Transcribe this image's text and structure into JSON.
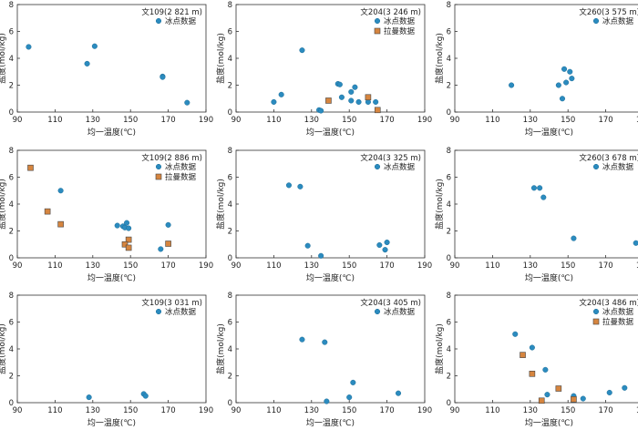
{
  "colors": {
    "ice": "#2b8bbf",
    "raman": "#d6853f",
    "marker_stroke": "#444444",
    "axis": "#333333"
  },
  "chart_data": [
    {
      "type": "scatter",
      "title": "文109(2 821 m)",
      "xlabel": "均一温度(℃)",
      "ylabel": "盐度(mol/kg)",
      "xlim": [
        90,
        190
      ],
      "ylim": [
        0,
        8
      ],
      "xticks": [
        90,
        110,
        130,
        150,
        170,
        190
      ],
      "yticks": [
        0,
        2,
        4,
        6,
        8
      ],
      "legend_position": "top-right",
      "series": [
        {
          "name": "冰点数据",
          "marker": "circle",
          "points": [
            [
              96,
              4.85
            ],
            [
              131,
              4.9
            ],
            [
              127,
              3.6
            ],
            [
              167,
              2.65
            ],
            [
              167,
              2.6
            ],
            [
              180,
              0.7
            ]
          ]
        }
      ]
    },
    {
      "type": "scatter",
      "title": "文204(3 246 m)",
      "xlabel": "均一温度(℃)",
      "ylabel": "盐度(mol/kg)",
      "xlim": [
        90,
        190
      ],
      "ylim": [
        0,
        8
      ],
      "xticks": [
        90,
        110,
        130,
        150,
        170,
        190
      ],
      "yticks": [
        0,
        2,
        4,
        6,
        8
      ],
      "legend_position": "top-right",
      "series": [
        {
          "name": "冰点数据",
          "marker": "circle",
          "points": [
            [
              125,
              4.6
            ],
            [
              114,
              1.3
            ],
            [
              110,
              0.75
            ],
            [
              144,
              2.1
            ],
            [
              145,
              2.05
            ],
            [
              151,
              1.5
            ],
            [
              153,
              1.85
            ],
            [
              146,
              1.1
            ],
            [
              151,
              0.85
            ],
            [
              155,
              0.75
            ],
            [
              160,
              0.75
            ],
            [
              164,
              0.75
            ],
            [
              134,
              0.15
            ],
            [
              135,
              0.1
            ]
          ]
        },
        {
          "name": "拉曼数据",
          "marker": "square",
          "points": [
            [
              139,
              0.85
            ],
            [
              160,
              1.1
            ],
            [
              165,
              0.15
            ]
          ]
        }
      ]
    },
    {
      "type": "scatter",
      "title": "文260(3 575 m)",
      "xlabel": "均一温度(℃)",
      "ylabel": "盐度(mol/kg)",
      "xlim": [
        90,
        190
      ],
      "ylim": [
        0,
        8
      ],
      "xticks": [
        90,
        110,
        130,
        150,
        170,
        190
      ],
      "yticks": [
        0,
        2,
        4,
        6,
        8
      ],
      "legend_position": "top-right",
      "series": [
        {
          "name": "冰点数据",
          "marker": "circle",
          "points": [
            [
              120,
              2.0
            ],
            [
              148,
              3.2
            ],
            [
              151,
              3.0
            ],
            [
              152,
              2.5
            ],
            [
              145,
              2.0
            ],
            [
              149,
              2.2
            ],
            [
              147,
              1.0
            ]
          ]
        }
      ]
    },
    {
      "type": "scatter",
      "title": "文109(2 886 m)",
      "xlabel": "均一温度(℃)",
      "ylabel": "盐度(mol/kg)",
      "xlim": [
        90,
        190
      ],
      "ylim": [
        0,
        8
      ],
      "xticks": [
        90,
        110,
        130,
        150,
        170,
        190
      ],
      "yticks": [
        0,
        2,
        4,
        6,
        8
      ],
      "legend_position": "top-right",
      "series": [
        {
          "name": "冰点数据",
          "marker": "circle",
          "points": [
            [
              113,
              5.0
            ],
            [
              143,
              2.4
            ],
            [
              146,
              2.35
            ],
            [
              148,
              2.6
            ],
            [
              147,
              2.25
            ],
            [
              149,
              2.2
            ],
            [
              170,
              2.45
            ],
            [
              166,
              0.65
            ]
          ]
        },
        {
          "name": "拉曼数据",
          "marker": "square",
          "points": [
            [
              97,
              6.7
            ],
            [
              106,
              3.45
            ],
            [
              113,
              2.5
            ],
            [
              149,
              1.35
            ],
            [
              147,
              1.0
            ],
            [
              149,
              0.75
            ],
            [
              170,
              1.05
            ]
          ]
        }
      ]
    },
    {
      "type": "scatter",
      "title": "文204(3 325 m)",
      "xlabel": "均一温度(℃)",
      "ylabel": "盐度(mol/kg)",
      "xlim": [
        90,
        190
      ],
      "ylim": [
        0,
        8
      ],
      "xticks": [
        90,
        110,
        130,
        150,
        170,
        190
      ],
      "yticks": [
        0,
        2,
        4,
        6,
        8
      ],
      "legend_position": "top-right",
      "series": [
        {
          "name": "冰点数据",
          "marker": "circle",
          "points": [
            [
              118,
              5.4
            ],
            [
              124,
              5.3
            ],
            [
              128,
              0.9
            ],
            [
              135,
              0.15
            ],
            [
              166,
              0.95
            ],
            [
              170,
              1.15
            ],
            [
              169,
              0.6
            ]
          ]
        }
      ]
    },
    {
      "type": "scatter",
      "title": "文260(3 678 m)",
      "xlabel": "均一温度(℃)",
      "ylabel": "盐度(mol/kg)",
      "xlim": [
        90,
        190
      ],
      "ylim": [
        0,
        8
      ],
      "xticks": [
        90,
        110,
        130,
        150,
        170,
        190
      ],
      "yticks": [
        0,
        2,
        4,
        6,
        8
      ],
      "legend_position": "top-right",
      "series": [
        {
          "name": "冰点数据",
          "marker": "circle",
          "points": [
            [
              132,
              5.2
            ],
            [
              135,
              5.2
            ],
            [
              137,
              4.5
            ],
            [
              153,
              1.45
            ],
            [
              186,
              1.1
            ]
          ]
        }
      ]
    },
    {
      "type": "scatter",
      "title": "文109(3 031 m)",
      "xlabel": "均一温度(℃)",
      "ylabel": "盐度(mol/kg)",
      "xlim": [
        90,
        190
      ],
      "ylim": [
        0,
        8
      ],
      "xticks": [
        90,
        110,
        130,
        150,
        170,
        190
      ],
      "yticks": [
        0,
        2,
        4,
        6,
        8
      ],
      "legend_position": "top-right",
      "series": [
        {
          "name": "冰点数据",
          "marker": "circle",
          "points": [
            [
              128,
              0.4
            ],
            [
              157,
              0.65
            ],
            [
              158,
              0.5
            ]
          ]
        }
      ]
    },
    {
      "type": "scatter",
      "title": "文204(3 405 m)",
      "xlabel": "均一温度(℃)",
      "ylabel": "盐度(mol/kg)",
      "xlim": [
        90,
        190
      ],
      "ylim": [
        0,
        8
      ],
      "xticks": [
        90,
        110,
        130,
        150,
        170,
        190
      ],
      "yticks": [
        0,
        2,
        4,
        6,
        8
      ],
      "legend_position": "top-right",
      "series": [
        {
          "name": "冰点数据",
          "marker": "circle",
          "points": [
            [
              125,
              4.7
            ],
            [
              137,
              4.5
            ],
            [
              152,
              1.5
            ],
            [
              150,
              0.4
            ],
            [
              138,
              0.1
            ],
            [
              176,
              0.7
            ]
          ]
        }
      ]
    },
    {
      "type": "scatter",
      "title": "文204(3 486 m)",
      "xlabel": "均一温度(℃)",
      "ylabel": "盐度(mol/kg)",
      "xlim": [
        90,
        190
      ],
      "ylim": [
        0,
        8
      ],
      "xticks": [
        90,
        110,
        130,
        150,
        170,
        190
      ],
      "yticks": [
        0,
        2,
        4,
        6,
        8
      ],
      "legend_position": "top-right",
      "series": [
        {
          "name": "冰点数据",
          "marker": "circle",
          "points": [
            [
              122,
              5.1
            ],
            [
              131,
              4.1
            ],
            [
              138,
              2.45
            ],
            [
              139,
              0.6
            ],
            [
              153,
              0.5
            ],
            [
              158,
              0.3
            ],
            [
              172,
              0.75
            ],
            [
              180,
              1.1
            ]
          ]
        },
        {
          "name": "拉曼数据",
          "marker": "square",
          "points": [
            [
              126,
              3.55
            ],
            [
              131,
              2.15
            ],
            [
              145,
              1.05
            ],
            [
              136,
              0.15
            ],
            [
              153,
              0.25
            ]
          ]
        }
      ]
    }
  ]
}
